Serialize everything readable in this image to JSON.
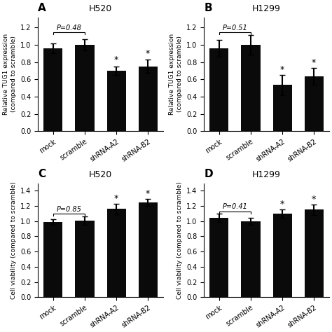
{
  "chart_data": [
    {
      "type": "bar",
      "panel_label": "A",
      "title": "H520",
      "ylabel": "Relative TUG1 expression\n(compared to scramble)",
      "categories": [
        "mock",
        "scramble",
        "shRNA-A2",
        "shRNA-B2"
      ],
      "values": [
        0.96,
        1.0,
        0.7,
        0.75
      ],
      "errors": [
        0.055,
        0.068,
        0.048,
        0.078
      ],
      "color": "#0a0a0a",
      "ylim": [
        0,
        1.32
      ],
      "yticks": [
        {
          "value": 0,
          "label": "0.0"
        },
        0.2,
        0.4,
        0.6,
        0.8,
        {
          "value": 1.0,
          "label": "1.0"
        },
        1.2
      ],
      "brackets": [
        {
          "text": "P=0.48",
          "from": "mock",
          "to": "scramble",
          "y": 1.12
        }
      ],
      "marks": [
        {
          "text": "*",
          "category": "shRNA-A2",
          "y": 0.775
        },
        {
          "text": "*",
          "category": "shRNA-B2",
          "y": 0.845
        }
      ]
    },
    {
      "type": "bar",
      "panel_label": "B",
      "title": "H1299",
      "ylabel": "Relative TUG1 expression\n(compared to scramble)",
      "categories": [
        "mock",
        "scramble",
        "shRNA-A2",
        "shRNA-B2"
      ],
      "values": [
        0.96,
        1.0,
        0.535,
        0.635
      ],
      "errors": [
        0.1,
        0.115,
        0.12,
        0.095
      ],
      "color": "#0a0a0a",
      "ylim": [
        0,
        1.32
      ],
      "yticks": [
        {
          "value": 0,
          "label": "0.0"
        },
        0.2,
        0.4,
        0.6,
        0.8,
        {
          "value": 1.0,
          "label": "1.0"
        },
        1.2
      ],
      "brackets": [
        {
          "text": "P=0.51",
          "from": "mock",
          "to": "scramble",
          "y": 1.12
        }
      ],
      "marks": [
        {
          "text": "*",
          "category": "shRNA-A2",
          "y": 0.66
        },
        {
          "text": "*",
          "category": "shRNA-B2",
          "y": 0.74
        }
      ]
    },
    {
      "type": "bar",
      "panel_label": "C",
      "title": "H520",
      "ylabel": "Cell viability (compared to scramble)",
      "categories": [
        "mock",
        "scramble",
        "shRNA-A2",
        "shRNA-B2"
      ],
      "values": [
        0.99,
        1.01,
        1.16,
        1.25
      ],
      "errors": [
        0.04,
        0.055,
        0.068,
        0.045
      ],
      "color": "#0a0a0a",
      "ylim": [
        0,
        1.5
      ],
      "yticks": [
        {
          "value": 0,
          "label": "0.0"
        },
        0.2,
        0.4,
        0.6,
        0.8,
        {
          "value": 1.0,
          "label": "1.0"
        },
        1.2,
        1.4
      ],
      "brackets": [
        {
          "text": "P=0.85",
          "from": "mock",
          "to": "scramble",
          "y": 1.07
        }
      ],
      "marks": [
        {
          "text": "*",
          "category": "shRNA-A2",
          "y": 1.235
        },
        {
          "text": "*",
          "category": "shRNA-B2",
          "y": 1.305
        }
      ]
    },
    {
      "type": "bar",
      "panel_label": "D",
      "title": "H1299",
      "ylabel": "Cell viability (compared to scramble)",
      "categories": [
        "mock",
        "scramble",
        "shRNA-A2",
        "shRNA-B2"
      ],
      "values": [
        1.04,
        1.0,
        1.1,
        1.15
      ],
      "errors": [
        0.055,
        0.048,
        0.058,
        0.068
      ],
      "color": "#0a0a0a",
      "ylim": [
        0,
        1.5
      ],
      "yticks": [
        {
          "value": 0,
          "label": "0.0"
        },
        0.2,
        0.4,
        0.6,
        0.8,
        {
          "value": 1.0,
          "label": "1.0"
        },
        1.2,
        1.4
      ],
      "brackets": [
        {
          "text": "P=0.41",
          "from": "mock",
          "to": "scramble",
          "y": 1.1
        }
      ],
      "marks": [
        {
          "text": "*",
          "category": "shRNA-A2",
          "y": 1.165
        },
        {
          "text": "*",
          "category": "shRNA-B2",
          "y": 1.225
        }
      ]
    }
  ]
}
